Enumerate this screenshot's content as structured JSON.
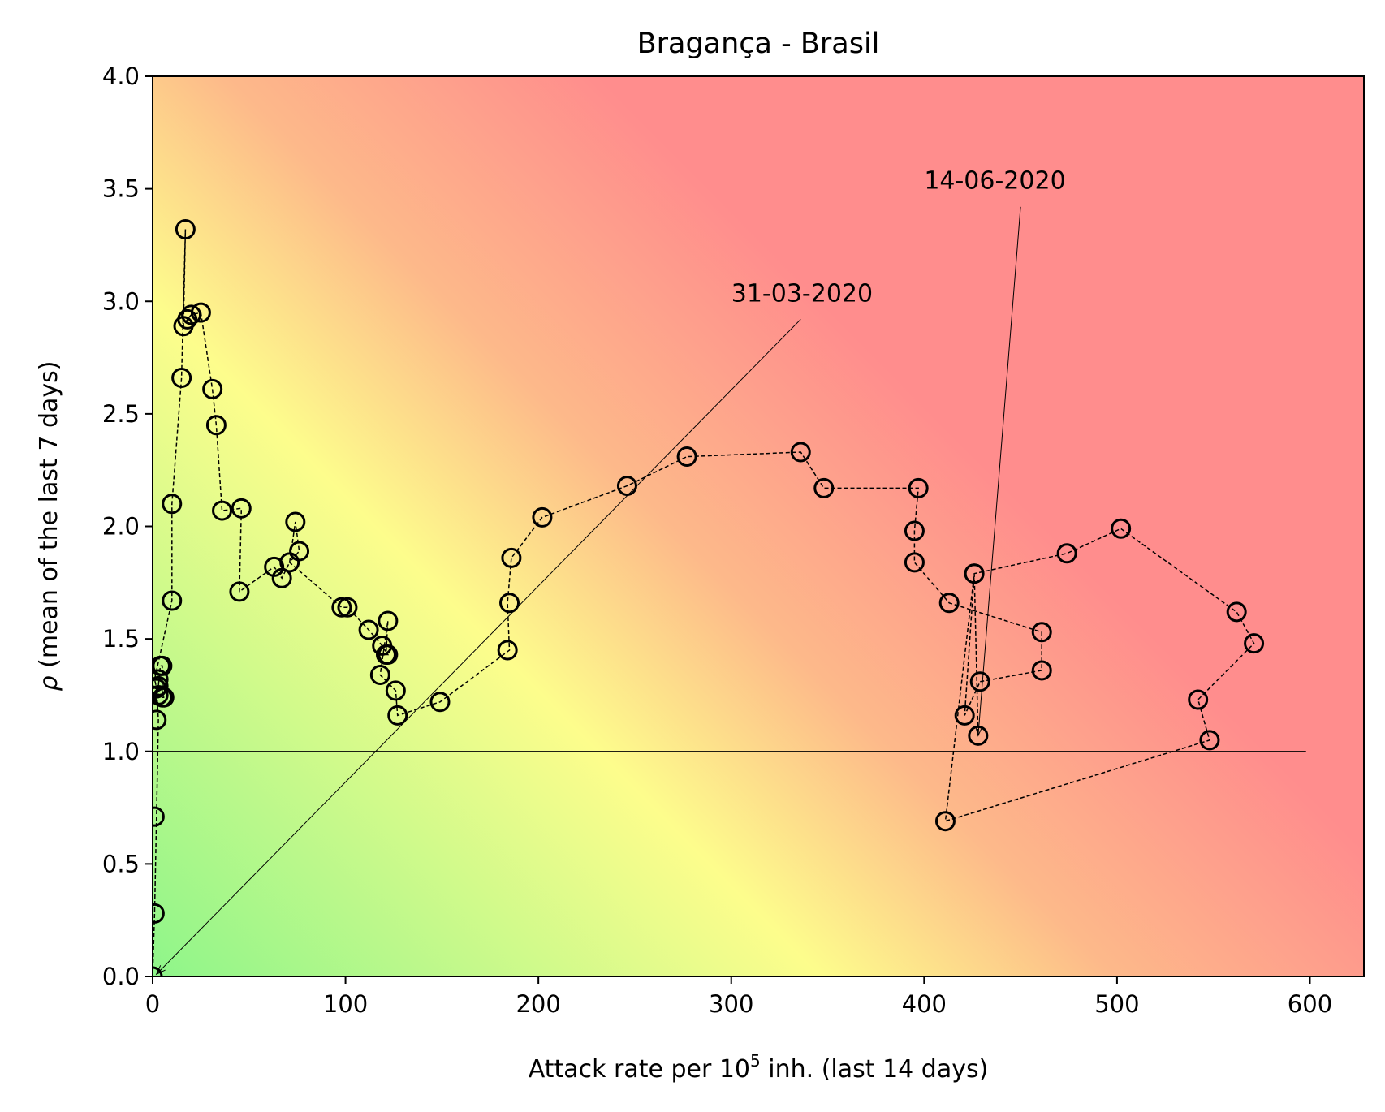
{
  "chart_data": {
    "type": "scatter",
    "title": "Bragança - Brasil",
    "xlabel": {
      "prefix": "Attack rate per 10",
      "superscript": "5",
      "suffix": " inh. (last 14 days)"
    },
    "ylabel": {
      "symbol": "ρ",
      "text": " (mean of the last 7 days)"
    },
    "xlim": [
      0,
      628
    ],
    "ylim": [
      0,
      4
    ],
    "xticks": [
      0,
      100,
      200,
      300,
      400,
      500,
      600
    ],
    "xtick_labels": [
      "0",
      "100",
      "200",
      "300",
      "400",
      "500",
      "600"
    ],
    "yticks": [
      0,
      0.5,
      1.0,
      1.5,
      2.0,
      2.5,
      3.0,
      3.5,
      4.0
    ],
    "ytick_labels": [
      "0.0",
      "0.5",
      "1.0",
      "1.5",
      "2.0",
      "2.5",
      "3.0",
      "3.5",
      "4.0"
    ],
    "grid": false,
    "background": "risk gradient: green (low attack rate, low ρ) → yellow → red (high attack rate / high ρ)",
    "colors": {
      "green": "#8ef58a",
      "yellow": "#fdfd8c",
      "orange": "#fdb98a",
      "red": "#ff8d8d",
      "marker_edge": "#000000"
    },
    "reference_line": {
      "y": 1.0,
      "x_range": [
        0,
        598
      ]
    },
    "series": [
      {
        "x": [
          0,
          1,
          1,
          2,
          2,
          3,
          3,
          3,
          4,
          5,
          5,
          6,
          10,
          10,
          15,
          16,
          17,
          18,
          20,
          25,
          31,
          33,
          36,
          45,
          46,
          63,
          67,
          71,
          74,
          76,
          98,
          101,
          112,
          118,
          119,
          121,
          122,
          122,
          126,
          127,
          149,
          184,
          185,
          186,
          202,
          246,
          277,
          336,
          348,
          395,
          395,
          397,
          413,
          411,
          421,
          426,
          426,
          428,
          429,
          461,
          461,
          474,
          502,
          542,
          548,
          562,
          571
        ],
        "y": [
          0.0,
          0.28,
          0.71,
          1.14,
          1.28,
          1.29,
          1.25,
          1.32,
          1.38,
          1.38,
          1.24,
          1.24,
          1.67,
          2.1,
          2.66,
          2.89,
          3.32,
          2.92,
          2.94,
          2.95,
          2.61,
          2.45,
          2.07,
          1.71,
          2.08,
          1.82,
          1.77,
          1.84,
          2.02,
          1.89,
          1.64,
          1.64,
          1.54,
          1.34,
          1.47,
          1.43,
          1.43,
          1.58,
          1.27,
          1.16,
          1.22,
          1.45,
          1.66,
          1.86,
          2.04,
          2.18,
          2.31,
          2.33,
          2.17,
          1.84,
          1.98,
          2.17,
          1.66,
          0.69,
          1.16,
          1.79,
          1.79,
          1.07,
          1.31,
          1.36,
          1.53,
          1.88,
          1.99,
          1.23,
          1.05,
          1.62,
          1.48
        ],
        "path": [
          [
            0,
            0.0
          ],
          [
            1,
            0.28
          ],
          [
            2,
            0.71
          ],
          [
            3,
            1.14
          ],
          [
            2,
            1.28
          ],
          [
            3,
            1.29
          ],
          [
            4,
            1.38
          ],
          [
            5,
            1.38
          ],
          [
            5,
            1.24
          ],
          [
            6,
            1.24
          ],
          [
            3,
            1.25
          ],
          [
            1,
            1.32
          ],
          [
            10,
            1.67
          ],
          [
            10,
            2.1
          ],
          [
            15,
            2.66
          ],
          [
            17,
            3.32
          ],
          [
            16,
            2.89
          ],
          [
            18,
            2.92
          ],
          [
            20,
            2.94
          ],
          [
            25,
            2.95
          ],
          [
            31,
            2.61
          ],
          [
            33,
            2.45
          ],
          [
            36,
            2.07
          ],
          [
            46,
            2.08
          ],
          [
            45,
            1.71
          ],
          [
            63,
            1.82
          ],
          [
            67,
            1.77
          ],
          [
            71,
            1.84
          ],
          [
            74,
            2.02
          ],
          [
            76,
            1.89
          ],
          [
            71,
            1.84
          ],
          [
            98,
            1.64
          ],
          [
            101,
            1.64
          ],
          [
            112,
            1.54
          ],
          [
            119,
            1.47
          ],
          [
            122,
            1.43
          ],
          [
            121,
            1.43
          ],
          [
            122,
            1.58
          ],
          [
            118,
            1.34
          ],
          [
            126,
            1.27
          ],
          [
            127,
            1.16
          ],
          [
            149,
            1.22
          ],
          [
            185,
            1.45
          ],
          [
            184,
            1.66
          ],
          [
            186,
            1.86
          ],
          [
            202,
            2.04
          ],
          [
            246,
            2.18
          ],
          [
            277,
            2.31
          ],
          [
            336,
            2.33
          ],
          [
            348,
            2.17
          ],
          [
            397,
            2.17
          ],
          [
            395,
            1.98
          ],
          [
            395,
            1.84
          ],
          [
            413,
            1.66
          ],
          [
            461,
            1.53
          ],
          [
            461,
            1.36
          ],
          [
            429,
            1.31
          ],
          [
            421,
            1.16
          ],
          [
            426,
            1.79
          ],
          [
            474,
            1.88
          ],
          [
            502,
            1.99
          ],
          [
            562,
            1.62
          ],
          [
            571,
            1.48
          ],
          [
            542,
            1.23
          ],
          [
            548,
            1.05
          ],
          [
            411,
            0.69
          ],
          [
            426,
            1.79
          ],
          [
            428,
            1.07
          ]
        ]
      }
    ],
    "annotations": [
      {
        "text": "31-03-2020",
        "text_pos": [
          300,
          3.0
        ],
        "line_start": [
          336,
          2.92
        ],
        "arrow_to": [
          2,
          0.01
        ]
      },
      {
        "text": "14-06-2020",
        "text_pos": [
          400,
          3.5
        ],
        "line_start": [
          450,
          3.42
        ],
        "arrow_to": [
          428,
          1.07
        ]
      }
    ]
  }
}
